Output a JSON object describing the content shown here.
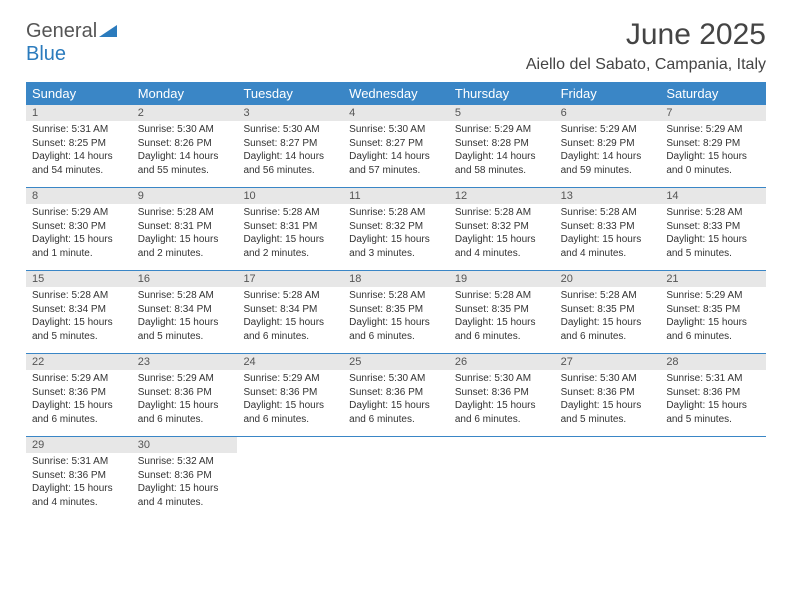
{
  "brand": {
    "part1": "General",
    "part2": "Blue"
  },
  "title": "June 2025",
  "subtitle": "Aiello del Sabato, Campania, Italy",
  "colors": {
    "header_bg": "#3a86c6",
    "header_text": "#ffffff",
    "daynum_bg": "#e7e7e7",
    "border": "#3a86c6",
    "brand_blue": "#2b7bbd"
  },
  "day_headers": [
    "Sunday",
    "Monday",
    "Tuesday",
    "Wednesday",
    "Thursday",
    "Friday",
    "Saturday"
  ],
  "weeks": [
    [
      {
        "n": "1",
        "sunrise": "Sunrise: 5:31 AM",
        "sunset": "Sunset: 8:25 PM",
        "day1": "Daylight: 14 hours",
        "day2": "and 54 minutes."
      },
      {
        "n": "2",
        "sunrise": "Sunrise: 5:30 AM",
        "sunset": "Sunset: 8:26 PM",
        "day1": "Daylight: 14 hours",
        "day2": "and 55 minutes."
      },
      {
        "n": "3",
        "sunrise": "Sunrise: 5:30 AM",
        "sunset": "Sunset: 8:27 PM",
        "day1": "Daylight: 14 hours",
        "day2": "and 56 minutes."
      },
      {
        "n": "4",
        "sunrise": "Sunrise: 5:30 AM",
        "sunset": "Sunset: 8:27 PM",
        "day1": "Daylight: 14 hours",
        "day2": "and 57 minutes."
      },
      {
        "n": "5",
        "sunrise": "Sunrise: 5:29 AM",
        "sunset": "Sunset: 8:28 PM",
        "day1": "Daylight: 14 hours",
        "day2": "and 58 minutes."
      },
      {
        "n": "6",
        "sunrise": "Sunrise: 5:29 AM",
        "sunset": "Sunset: 8:29 PM",
        "day1": "Daylight: 14 hours",
        "day2": "and 59 minutes."
      },
      {
        "n": "7",
        "sunrise": "Sunrise: 5:29 AM",
        "sunset": "Sunset: 8:29 PM",
        "day1": "Daylight: 15 hours",
        "day2": "and 0 minutes."
      }
    ],
    [
      {
        "n": "8",
        "sunrise": "Sunrise: 5:29 AM",
        "sunset": "Sunset: 8:30 PM",
        "day1": "Daylight: 15 hours",
        "day2": "and 1 minute."
      },
      {
        "n": "9",
        "sunrise": "Sunrise: 5:28 AM",
        "sunset": "Sunset: 8:31 PM",
        "day1": "Daylight: 15 hours",
        "day2": "and 2 minutes."
      },
      {
        "n": "10",
        "sunrise": "Sunrise: 5:28 AM",
        "sunset": "Sunset: 8:31 PM",
        "day1": "Daylight: 15 hours",
        "day2": "and 2 minutes."
      },
      {
        "n": "11",
        "sunrise": "Sunrise: 5:28 AM",
        "sunset": "Sunset: 8:32 PM",
        "day1": "Daylight: 15 hours",
        "day2": "and 3 minutes."
      },
      {
        "n": "12",
        "sunrise": "Sunrise: 5:28 AM",
        "sunset": "Sunset: 8:32 PM",
        "day1": "Daylight: 15 hours",
        "day2": "and 4 minutes."
      },
      {
        "n": "13",
        "sunrise": "Sunrise: 5:28 AM",
        "sunset": "Sunset: 8:33 PM",
        "day1": "Daylight: 15 hours",
        "day2": "and 4 minutes."
      },
      {
        "n": "14",
        "sunrise": "Sunrise: 5:28 AM",
        "sunset": "Sunset: 8:33 PM",
        "day1": "Daylight: 15 hours",
        "day2": "and 5 minutes."
      }
    ],
    [
      {
        "n": "15",
        "sunrise": "Sunrise: 5:28 AM",
        "sunset": "Sunset: 8:34 PM",
        "day1": "Daylight: 15 hours",
        "day2": "and 5 minutes."
      },
      {
        "n": "16",
        "sunrise": "Sunrise: 5:28 AM",
        "sunset": "Sunset: 8:34 PM",
        "day1": "Daylight: 15 hours",
        "day2": "and 5 minutes."
      },
      {
        "n": "17",
        "sunrise": "Sunrise: 5:28 AM",
        "sunset": "Sunset: 8:34 PM",
        "day1": "Daylight: 15 hours",
        "day2": "and 6 minutes."
      },
      {
        "n": "18",
        "sunrise": "Sunrise: 5:28 AM",
        "sunset": "Sunset: 8:35 PM",
        "day1": "Daylight: 15 hours",
        "day2": "and 6 minutes."
      },
      {
        "n": "19",
        "sunrise": "Sunrise: 5:28 AM",
        "sunset": "Sunset: 8:35 PM",
        "day1": "Daylight: 15 hours",
        "day2": "and 6 minutes."
      },
      {
        "n": "20",
        "sunrise": "Sunrise: 5:28 AM",
        "sunset": "Sunset: 8:35 PM",
        "day1": "Daylight: 15 hours",
        "day2": "and 6 minutes."
      },
      {
        "n": "21",
        "sunrise": "Sunrise: 5:29 AM",
        "sunset": "Sunset: 8:35 PM",
        "day1": "Daylight: 15 hours",
        "day2": "and 6 minutes."
      }
    ],
    [
      {
        "n": "22",
        "sunrise": "Sunrise: 5:29 AM",
        "sunset": "Sunset: 8:36 PM",
        "day1": "Daylight: 15 hours",
        "day2": "and 6 minutes."
      },
      {
        "n": "23",
        "sunrise": "Sunrise: 5:29 AM",
        "sunset": "Sunset: 8:36 PM",
        "day1": "Daylight: 15 hours",
        "day2": "and 6 minutes."
      },
      {
        "n": "24",
        "sunrise": "Sunrise: 5:29 AM",
        "sunset": "Sunset: 8:36 PM",
        "day1": "Daylight: 15 hours",
        "day2": "and 6 minutes."
      },
      {
        "n": "25",
        "sunrise": "Sunrise: 5:30 AM",
        "sunset": "Sunset: 8:36 PM",
        "day1": "Daylight: 15 hours",
        "day2": "and 6 minutes."
      },
      {
        "n": "26",
        "sunrise": "Sunrise: 5:30 AM",
        "sunset": "Sunset: 8:36 PM",
        "day1": "Daylight: 15 hours",
        "day2": "and 6 minutes."
      },
      {
        "n": "27",
        "sunrise": "Sunrise: 5:30 AM",
        "sunset": "Sunset: 8:36 PM",
        "day1": "Daylight: 15 hours",
        "day2": "and 5 minutes."
      },
      {
        "n": "28",
        "sunrise": "Sunrise: 5:31 AM",
        "sunset": "Sunset: 8:36 PM",
        "day1": "Daylight: 15 hours",
        "day2": "and 5 minutes."
      }
    ],
    [
      {
        "n": "29",
        "sunrise": "Sunrise: 5:31 AM",
        "sunset": "Sunset: 8:36 PM",
        "day1": "Daylight: 15 hours",
        "day2": "and 4 minutes."
      },
      {
        "n": "30",
        "sunrise": "Sunrise: 5:32 AM",
        "sunset": "Sunset: 8:36 PM",
        "day1": "Daylight: 15 hours",
        "day2": "and 4 minutes."
      },
      {
        "empty": true
      },
      {
        "empty": true
      },
      {
        "empty": true
      },
      {
        "empty": true
      },
      {
        "empty": true
      }
    ]
  ]
}
